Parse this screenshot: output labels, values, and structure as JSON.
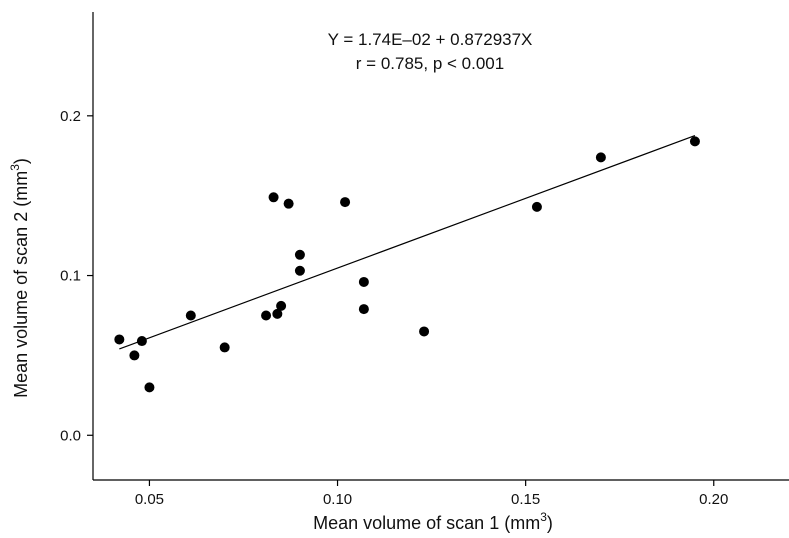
{
  "chart_data": {
    "type": "scatter",
    "annotations": {
      "equation": "Y = 1.74E–02 + 0.872937X",
      "stats": "r = 0.785, p < 0.001"
    },
    "xlabel": {
      "text": "Mean volume of scan 1 (mm",
      "sup": "3",
      "close": ")"
    },
    "ylabel": {
      "text": "Mean volume of scan 2 (mm",
      "sup": "3",
      "close": ")"
    },
    "xlim": [
      0.035,
      0.22
    ],
    "ylim": [
      -0.028,
      0.265
    ],
    "x_ticks": [
      0.05,
      0.1,
      0.15,
      0.2
    ],
    "x_tick_labels": [
      "0.05",
      "0.10",
      "0.15",
      "0.20"
    ],
    "y_ticks": [
      0.0,
      0.1,
      0.2
    ],
    "y_tick_labels": [
      "0.0",
      "0.1",
      "0.2"
    ],
    "grid": false,
    "points": [
      {
        "x": 0.042,
        "y": 0.06
      },
      {
        "x": 0.046,
        "y": 0.05
      },
      {
        "x": 0.048,
        "y": 0.059
      },
      {
        "x": 0.05,
        "y": 0.03
      },
      {
        "x": 0.061,
        "y": 0.075
      },
      {
        "x": 0.07,
        "y": 0.055
      },
      {
        "x": 0.081,
        "y": 0.075
      },
      {
        "x": 0.083,
        "y": 0.149
      },
      {
        "x": 0.084,
        "y": 0.076
      },
      {
        "x": 0.085,
        "y": 0.081
      },
      {
        "x": 0.087,
        "y": 0.145
      },
      {
        "x": 0.09,
        "y": 0.113
      },
      {
        "x": 0.09,
        "y": 0.103
      },
      {
        "x": 0.102,
        "y": 0.146
      },
      {
        "x": 0.107,
        "y": 0.096
      },
      {
        "x": 0.107,
        "y": 0.079
      },
      {
        "x": 0.123,
        "y": 0.065
      },
      {
        "x": 0.153,
        "y": 0.143
      },
      {
        "x": 0.17,
        "y": 0.174
      },
      {
        "x": 0.195,
        "y": 0.184
      }
    ],
    "regression": {
      "intercept": 0.0174,
      "slope": 0.872937,
      "x_range": [
        0.042,
        0.195
      ]
    }
  }
}
